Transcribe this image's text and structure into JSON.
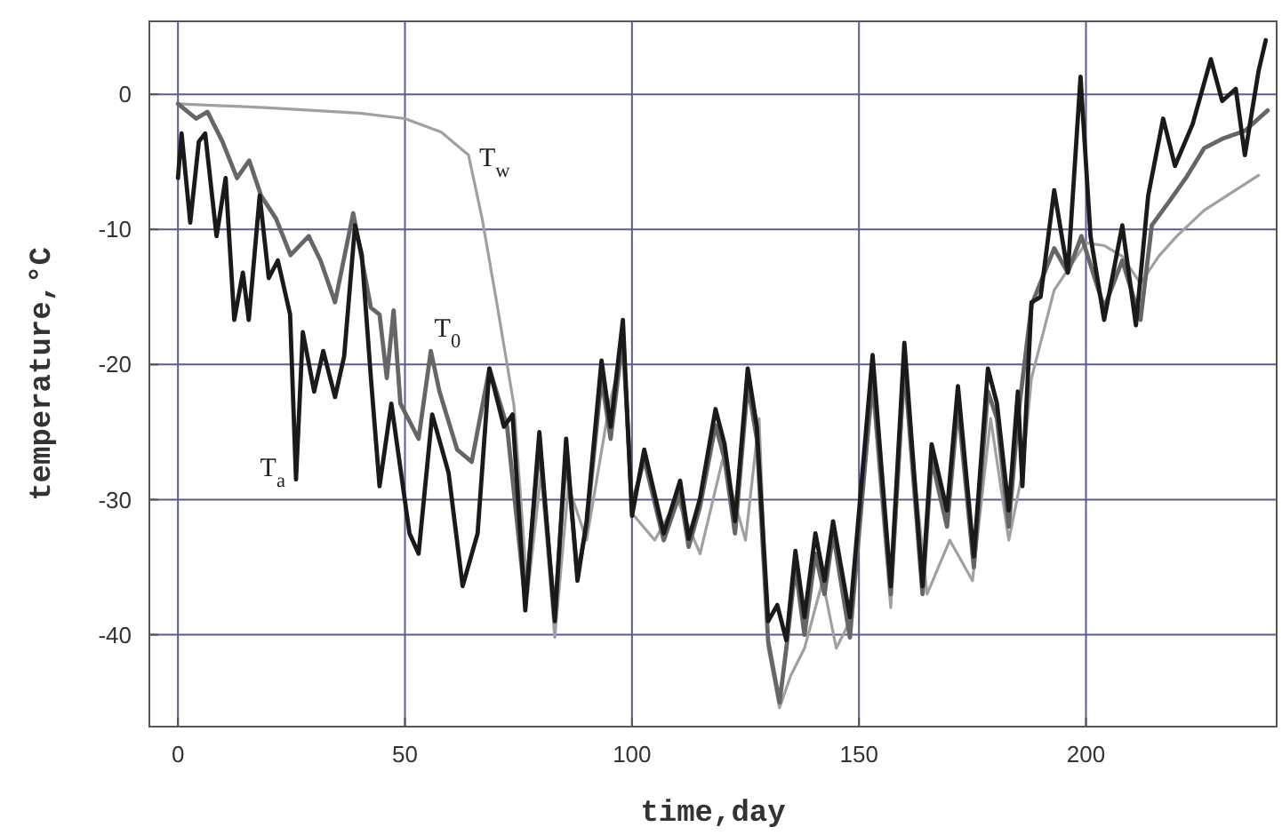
{
  "chart_data": {
    "type": "line",
    "xlabel": "time,day",
    "ylabel": "temperature,°C",
    "xlim": [
      -6.3,
      242
    ],
    "ylim": [
      -46.8,
      5.4
    ],
    "xticks": [
      0,
      50,
      100,
      150,
      200
    ],
    "yticks": [
      -40,
      -30,
      -20,
      -10,
      0
    ],
    "grid": true,
    "line_style": "solid",
    "marker": "none",
    "series": [
      {
        "name": "T$_{w}$",
        "color": "#a0a0a0",
        "x": [
          0,
          20,
          40,
          50,
          58,
          64,
          67,
          70,
          74,
          77,
          80,
          83,
          86,
          90,
          95,
          98,
          100,
          105,
          110,
          115,
          120,
          125,
          128,
          130,
          132.5,
          135,
          138,
          142,
          145,
          148,
          153,
          157,
          160,
          165,
          170,
          175,
          179,
          183,
          186,
          188,
          193,
          200,
          204,
          208,
          212,
          216,
          220,
          226,
          232,
          238
        ],
        "values": [
          -0.7,
          -1,
          -1.4,
          -1.8,
          -2.8,
          -4.5,
          -9.2,
          -15,
          -23,
          -37,
          -28,
          -40.2,
          -29,
          -33,
          -23,
          -19,
          -31,
          -33,
          -30,
          -34,
          -27,
          -33,
          -24,
          -41,
          -45.4,
          -43,
          -41,
          -36,
          -41,
          -39,
          -22,
          -38,
          -21,
          -37,
          -33,
          -36,
          -24,
          -33,
          -28,
          -21,
          -14.5,
          -11,
          -11.2,
          -12,
          -14,
          -12,
          -10.5,
          -8.6,
          -7.3,
          -6
        ]
      },
      {
        "name": "T$_{0}$",
        "color": "#666666",
        "x": [
          0,
          4,
          6.5,
          9.8,
          13,
          15.7,
          18.3,
          21.6,
          24.8,
          28.8,
          31.4,
          34.6,
          38.6,
          42.5,
          44.4,
          46,
          47.5,
          49,
          53,
          55.7,
          57.6,
          61.5,
          64.7,
          68.6,
          72.5,
          76.5,
          79.6,
          83,
          85.5,
          88,
          90,
          93.3,
          95.3,
          98,
          100,
          102.7,
          107,
          110.6,
          112.5,
          115,
          118.4,
          120.4,
          122.7,
          125.5,
          127.5,
          130,
          132.5,
          134,
          136,
          138,
          140.4,
          142.4,
          144.3,
          148,
          153,
          157,
          160,
          164,
          166,
          169.4,
          171.8,
          175.3,
          178.4,
          180.4,
          183,
          185,
          188,
          193,
          196,
          199,
          204,
          208,
          212,
          214.5,
          218.4,
          222,
          226,
          230,
          235,
          240
        ],
        "values": [
          -0.7,
          -1.8,
          -1.3,
          -3.5,
          -6.2,
          -4.9,
          -7.5,
          -9.2,
          -11.9,
          -10.5,
          -12.3,
          -15.4,
          -8.8,
          -15.8,
          -16.3,
          -21,
          -16,
          -22.9,
          -25.5,
          -19,
          -22,
          -26.3,
          -27.2,
          -20.3,
          -24.6,
          -37.5,
          -26,
          -38.5,
          -26.5,
          -35.5,
          -32,
          -21,
          -25.5,
          -18,
          -30.5,
          -27,
          -33,
          -29.5,
          -33.5,
          -30.5,
          -24.5,
          -27,
          -32.5,
          -21.5,
          -25.5,
          -40.5,
          -45,
          -41,
          -35,
          -40,
          -34,
          -37,
          -32.5,
          -40.2,
          -21,
          -37,
          -20,
          -37,
          -27,
          -32,
          -23,
          -35,
          -22,
          -24,
          -32,
          -24,
          -15.6,
          -11.4,
          -13.2,
          -10.5,
          -15.8,
          -12.3,
          -16.7,
          -9.7,
          -7.9,
          -6.2,
          -4,
          -3.3,
          -2.7,
          -1.2
        ]
      },
      {
        "name": "T$_{a}$",
        "color": "#1a1a1a",
        "x": [
          0,
          0.8,
          2.7,
          4.6,
          6,
          8.5,
          10.5,
          12.4,
          14.3,
          15.6,
          18,
          20,
          22,
          24.7,
          26,
          27.5,
          30,
          32,
          34.6,
          36.6,
          39,
          40.5,
          42.5,
          44.4,
          47,
          51,
          53,
          56,
          59.6,
          62.7,
          66,
          68.6,
          71.8,
          73.7,
          76.5,
          79.6,
          83,
          85.5,
          88,
          90,
          93.3,
          95.3,
          98,
          100,
          102.7,
          107,
          110.6,
          112.5,
          115,
          118.4,
          120.4,
          122.7,
          125.5,
          127.5,
          130,
          132,
          134,
          136,
          138,
          140.4,
          142.4,
          144.3,
          148,
          153,
          157,
          160,
          164,
          166,
          169.4,
          171.8,
          175.3,
          178.4,
          180.4,
          183,
          185,
          186,
          188,
          190,
          193,
          196,
          198.8,
          201,
          204,
          208,
          211,
          213.7,
          217,
          219.6,
          223.5,
          227.5,
          230,
          233,
          235,
          238,
          239.6
        ],
        "values": [
          -6.2,
          -2.9,
          -9.5,
          -3.5,
          -2.9,
          -10.5,
          -6.2,
          -16.7,
          -13.2,
          -16.7,
          -7.5,
          -13.6,
          -12.3,
          -16.3,
          -28.5,
          -17.6,
          -22,
          -19,
          -22.4,
          -19.4,
          -9.7,
          -11.9,
          -21,
          -29,
          -22.9,
          -32.5,
          -34,
          -23.7,
          -28,
          -36.4,
          -32.5,
          -20.3,
          -24.6,
          -23.7,
          -38.2,
          -25,
          -39,
          -25.5,
          -36,
          -31.6,
          -19.7,
          -24.6,
          -16.7,
          -31.2,
          -26.3,
          -32.5,
          -28.6,
          -32.9,
          -29.9,
          -23.3,
          -25.9,
          -31.6,
          -20.3,
          -24.6,
          -39,
          -37.8,
          -40.4,
          -33.8,
          -38.7,
          -32.5,
          -36,
          -31.6,
          -38.7,
          -19.3,
          -36.4,
          -18.4,
          -36.4,
          -25.9,
          -30.8,
          -21.6,
          -34.2,
          -20.3,
          -22.9,
          -30.8,
          -22,
          -29,
          -15.4,
          -15,
          -7.1,
          -13.2,
          1.3,
          -10.5,
          -16.7,
          -9.7,
          -17.1,
          -7.5,
          -1.8,
          -5.3,
          -2.2,
          2.6,
          -0.5,
          0.4,
          -4.5,
          1.7,
          4
        ]
      }
    ]
  }
}
